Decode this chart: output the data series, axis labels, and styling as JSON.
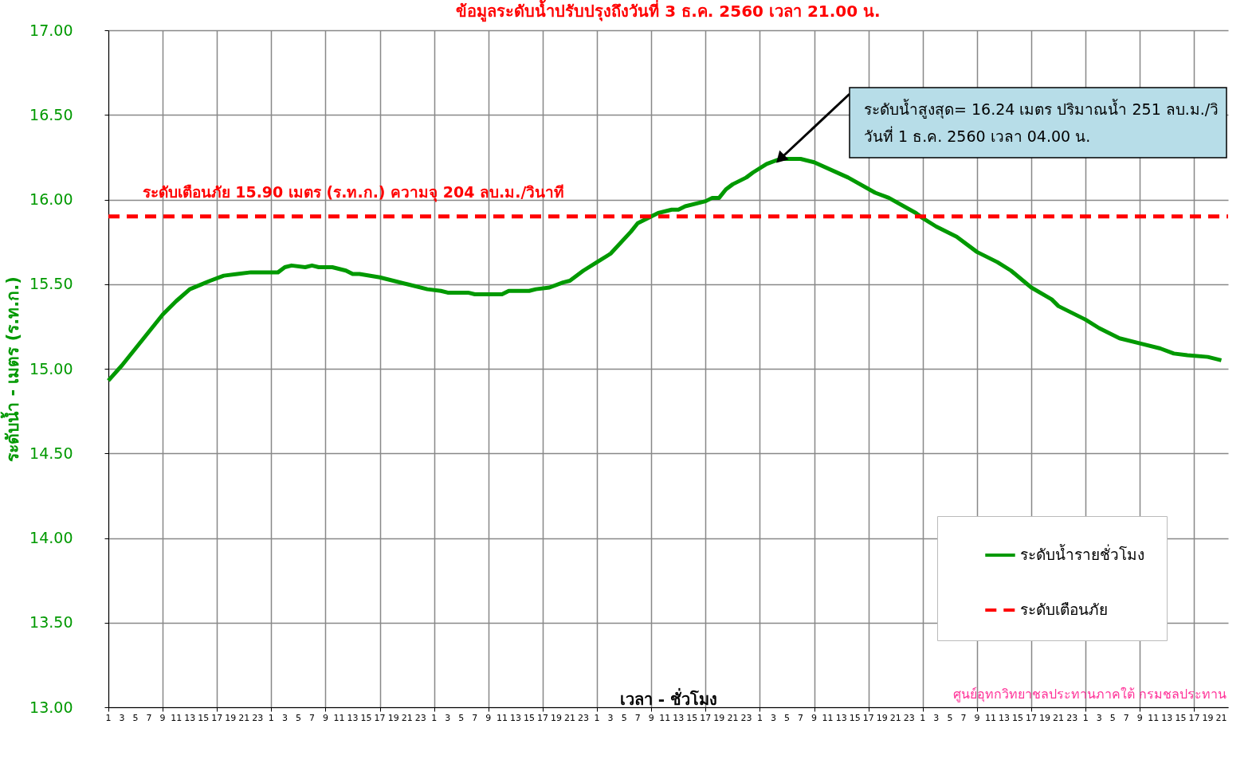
{
  "chart_data": {
    "type": "line",
    "title": "ข้อมูลระดับน้ำปรับปรุงถึงวันที่ 3 ธ.ค. 2560 เวลา 21.00 น.",
    "xlabel": "เวลา - ชั่วโมง",
    "ylabel": "ระดับน้ำ - เมตร (ร.ท.ก.)",
    "annotations": [
      {
        "text": "ระดับเตือนภัย 15.90 เมตร (ร.ท.ก.) ความจุ  204 ลบ.ม./วินาที",
        "x": "--11-27T06:00",
        "y": 15.9
      },
      {
        "text": "ระดับน้ำสูงสุด= 16.24 เมตร ปริมาณน้ำ 251 ลบ.ม./วิ\nวันที่ 1 ธ.ค. 2560  เวลา  04.00  น.",
        "x": "--12-01T04:00",
        "y": 16.24
      },
      "ศูนย์อุทกวิทยาชลประทานภาคใต้  กรมชลประทาน"
    ],
    "series": [
      {
        "name": "ระดับน้ำรายชั่วโมง",
        "color": "#009900",
        "line_style": "solid",
        "x": [
          "--11-27T01:00",
          "--11-27T03:00",
          "--11-27T05:00",
          "--11-27T07:00",
          "--11-27T09:00",
          "--11-27T11:00",
          "--11-27T13:00",
          "--11-27T16:00",
          "--11-27T18:00",
          "--11-27T20:00",
          "--11-27T22:00",
          "--11-28T02:00",
          "--11-28T03:00",
          "--11-28T04:00",
          "--11-28T06:00",
          "--11-28T07:00",
          "--11-28T08:00",
          "--11-28T10:00",
          "--11-28T12:00",
          "--11-28T13:00",
          "--11-28T14:00",
          "--11-28T17:00",
          "--11-28T21:00",
          "--11-29T00:00",
          "--11-29T02:00",
          "--11-29T03:00",
          "--11-29T06:00",
          "--11-29T07:00",
          "--11-29T11:00",
          "--11-29T12:00",
          "--11-29T15:00",
          "--11-29T16:00",
          "--11-29T18:00",
          "--11-29T20:00",
          "--11-29T21:00",
          "--11-29T23:00",
          "--11-30T01:00",
          "--11-30T03:00",
          "--11-30T06:00",
          "--11-30T07:00",
          "--11-30T09:00",
          "--11-30T10:00",
          "--11-30T12:00",
          "--11-30T13:00",
          "--11-30T14:00",
          "--11-30T17:00",
          "--11-30T18:00",
          "--11-30T19:00",
          "--11-30T20:00",
          "--11-30T21:00",
          "--11-30T23:00",
          "--12-01T00:00",
          "--12-01T02:00",
          "--12-01T04:00",
          "--12-01T07:00",
          "--12-01T09:00",
          "--12-01T14:00",
          "--12-01T18:00",
          "--12-01T20:00",
          "--12-02T00:00",
          "--12-02T01:00",
          "--12-02T03:00",
          "--12-02T06:00",
          "--12-02T09:00",
          "--12-02T12:00",
          "--12-02T14:00",
          "--12-02T17:00",
          "--12-02T20:00",
          "--12-02T21:00",
          "--12-02T23:00",
          "--12-03T01:00",
          "--12-03T03:00",
          "--12-03T04:00",
          "--12-03T06:00",
          "--12-03T09:00",
          "--12-03T12:00",
          "--12-03T14:00",
          "--12-03T16:00",
          "--12-03T19:00",
          "--12-03T21:00"
        ],
        "values": [
          14.93,
          15.02,
          15.12,
          15.22,
          15.32,
          15.4,
          15.47,
          15.52,
          15.55,
          15.56,
          15.57,
          15.57,
          15.6,
          15.61,
          15.6,
          15.61,
          15.6,
          15.6,
          15.58,
          15.56,
          15.56,
          15.54,
          15.5,
          15.47,
          15.46,
          15.45,
          15.45,
          15.44,
          15.44,
          15.46,
          15.46,
          15.47,
          15.48,
          15.51,
          15.52,
          15.58,
          15.63,
          15.68,
          15.81,
          15.86,
          15.9,
          15.92,
          15.94,
          15.94,
          15.96,
          15.99,
          16.01,
          16.01,
          16.06,
          16.09,
          16.13,
          16.16,
          16.21,
          16.24,
          16.24,
          16.22,
          16.13,
          16.04,
          16.01,
          15.92,
          15.89,
          15.84,
          15.78,
          15.69,
          15.63,
          15.58,
          15.48,
          15.41,
          15.37,
          15.33,
          15.29,
          15.24,
          15.22,
          15.18,
          15.15,
          15.12,
          15.09,
          15.08,
          15.07,
          15.05
        ]
      },
      {
        "name": "ระดับเตือนภัย",
        "color": "#ff0000",
        "line_style": "dashed",
        "x": [
          "--11-27T01:00",
          "--12-03T22:00"
        ],
        "values": [
          15.9,
          15.9
        ]
      }
    ],
    "xlim": [
      "--11-27T01:00",
      "--12-03T22:00"
    ],
    "xticks": [
      {
        "value": "--11-27T01:00",
        "label": "1"
      },
      {
        "value": "--11-27T03:00",
        "label": "3"
      },
      {
        "value": "--11-27T05:00",
        "label": "5"
      },
      {
        "value": "--11-27T07:00",
        "label": "7"
      },
      {
        "value": "--11-27T09:00",
        "label": "9"
      },
      {
        "value": "--11-27T11:00",
        "label": "11"
      },
      {
        "value": "--11-27T13:00",
        "label": "13"
      },
      {
        "value": "--11-27T15:00",
        "label": "15"
      },
      {
        "value": "--11-27T17:00",
        "label": "17"
      },
      {
        "value": "--11-27T19:00",
        "label": "19"
      },
      {
        "value": "--11-27T21:00",
        "label": "21"
      },
      {
        "value": "--11-27T23:00",
        "label": "23"
      },
      {
        "value": "--11-28T01:00",
        "label": "1"
      },
      {
        "value": "--11-28T03:00",
        "label": "3"
      },
      {
        "value": "--11-28T05:00",
        "label": "5"
      },
      {
        "value": "--11-28T07:00",
        "label": "7"
      },
      {
        "value": "--11-28T09:00",
        "label": "9"
      },
      {
        "value": "--11-28T11:00",
        "label": "11"
      },
      {
        "value": "--11-28T13:00",
        "label": "13"
      },
      {
        "value": "--11-28T15:00",
        "label": "15"
      },
      {
        "value": "--11-28T17:00",
        "label": "17"
      },
      {
        "value": "--11-28T19:00",
        "label": "19"
      },
      {
        "value": "--11-28T21:00",
        "label": "21"
      },
      {
        "value": "--11-28T23:00",
        "label": "23"
      },
      {
        "value": "--11-29T01:00",
        "label": "1"
      },
      {
        "value": "--11-29T03:00",
        "label": "3"
      },
      {
        "value": "--11-29T05:00",
        "label": "5"
      },
      {
        "value": "--11-29T07:00",
        "label": "7"
      },
      {
        "value": "--11-29T09:00",
        "label": "9"
      },
      {
        "value": "--11-29T11:00",
        "label": "11"
      },
      {
        "value": "--11-29T13:00",
        "label": "13"
      },
      {
        "value": "--11-29T15:00",
        "label": "15"
      },
      {
        "value": "--11-29T17:00",
        "label": "17"
      },
      {
        "value": "--11-29T19:00",
        "label": "19"
      },
      {
        "value": "--11-29T21:00",
        "label": "21"
      },
      {
        "value": "--11-29T23:00",
        "label": "23"
      },
      {
        "value": "--11-30T01:00",
        "label": "1"
      },
      {
        "value": "--11-30T03:00",
        "label": "3"
      },
      {
        "value": "--11-30T05:00",
        "label": "5"
      },
      {
        "value": "--11-30T07:00",
        "label": "7"
      },
      {
        "value": "--11-30T09:00",
        "label": "9"
      },
      {
        "value": "--11-30T11:00",
        "label": "11"
      },
      {
        "value": "--11-30T13:00",
        "label": "13"
      },
      {
        "value": "--11-30T15:00",
        "label": "15"
      },
      {
        "value": "--11-30T17:00",
        "label": "17"
      },
      {
        "value": "--11-30T19:00",
        "label": "19"
      },
      {
        "value": "--11-30T21:00",
        "label": "21"
      },
      {
        "value": "--11-30T23:00",
        "label": "23"
      },
      {
        "value": "--12-01T01:00",
        "label": "1"
      },
      {
        "value": "--12-01T03:00",
        "label": "3"
      },
      {
        "value": "--12-01T05:00",
        "label": "5"
      },
      {
        "value": "--12-01T07:00",
        "label": "7"
      },
      {
        "value": "--12-01T09:00",
        "label": "9"
      },
      {
        "value": "--12-01T11:00",
        "label": "11"
      },
      {
        "value": "--12-01T13:00",
        "label": "13"
      },
      {
        "value": "--12-01T15:00",
        "label": "15"
      },
      {
        "value": "--12-01T17:00",
        "label": "17"
      },
      {
        "value": "--12-01T19:00",
        "label": "19"
      },
      {
        "value": "--12-01T21:00",
        "label": "21"
      },
      {
        "value": "--12-01T23:00",
        "label": "23"
      },
      {
        "value": "--12-02T01:00",
        "label": "1"
      },
      {
        "value": "--12-02T03:00",
        "label": "3"
      },
      {
        "value": "--12-02T05:00",
        "label": "5"
      },
      {
        "value": "--12-02T07:00",
        "label": "7"
      },
      {
        "value": "--12-02T09:00",
        "label": "9"
      },
      {
        "value": "--12-02T11:00",
        "label": "11"
      },
      {
        "value": "--12-02T13:00",
        "label": "13"
      },
      {
        "value": "--12-02T15:00",
        "label": "15"
      },
      {
        "value": "--12-02T17:00",
        "label": "17"
      },
      {
        "value": "--12-02T19:00",
        "label": "19"
      },
      {
        "value": "--12-02T21:00",
        "label": "21"
      },
      {
        "value": "--12-02T23:00",
        "label": "23"
      },
      {
        "value": "--12-03T01:00",
        "label": "1"
      },
      {
        "value": "--12-03T03:00",
        "label": "3"
      },
      {
        "value": "--12-03T05:00",
        "label": "5"
      },
      {
        "value": "--12-03T07:00",
        "label": "7"
      },
      {
        "value": "--12-03T09:00",
        "label": "9"
      },
      {
        "value": "--12-03T11:00",
        "label": "11"
      },
      {
        "value": "--12-03T13:00",
        "label": "13"
      },
      {
        "value": "--12-03T15:00",
        "label": "15"
      },
      {
        "value": "--12-03T17:00",
        "label": "17"
      },
      {
        "value": "--12-03T19:00",
        "label": "19"
      },
      {
        "value": "--12-03T21:00",
        "label": "21"
      }
    ],
    "ylim": [
      13,
      17
    ],
    "yticks": [
      {
        "value": 13,
        "label": "13.00"
      },
      {
        "value": 13.5,
        "label": "13.50"
      },
      {
        "value": 14,
        "label": "14.00"
      },
      {
        "value": 14.5,
        "label": "14.50"
      },
      {
        "value": 15,
        "label": "15.00"
      },
      {
        "value": 15.5,
        "label": "15.50"
      },
      {
        "value": 16,
        "label": "16.00"
      },
      {
        "value": 16.5,
        "label": "16.50"
      },
      {
        "value": 17,
        "label": "17.00"
      }
    ],
    "grid": true,
    "legend": "bottom right",
    "marker": "none"
  }
}
